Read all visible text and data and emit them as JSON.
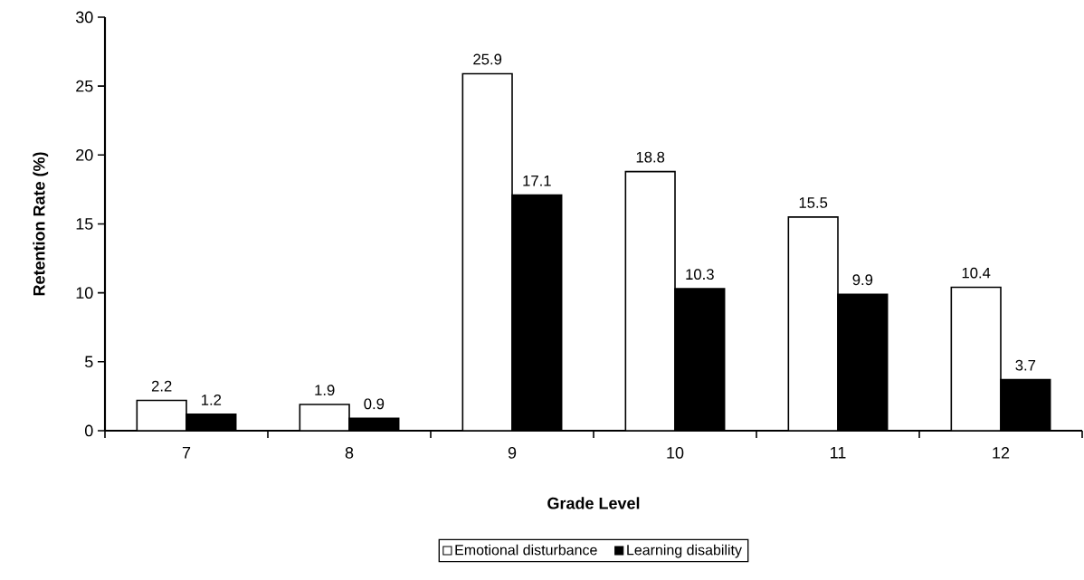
{
  "chart_data": {
    "type": "bar",
    "xlabel": "Grade Level",
    "ylabel": "Retention Rate (%)",
    "categories": [
      "7",
      "8",
      "9",
      "10",
      "11",
      "12"
    ],
    "series": [
      {
        "name": "Emotional disturbance",
        "color": "#ffffff",
        "values": [
          2.2,
          1.9,
          25.9,
          18.8,
          15.5,
          10.4
        ]
      },
      {
        "name": "Learning disability",
        "color": "#000000",
        "values": [
          1.2,
          0.9,
          17.1,
          10.3,
          9.9,
          3.7
        ]
      }
    ],
    "ylim": [
      0,
      30
    ],
    "yticks": [
      0,
      5,
      10,
      15,
      20,
      25,
      30
    ],
    "data_labels": true,
    "legend": "bottom",
    "grid": false
  }
}
